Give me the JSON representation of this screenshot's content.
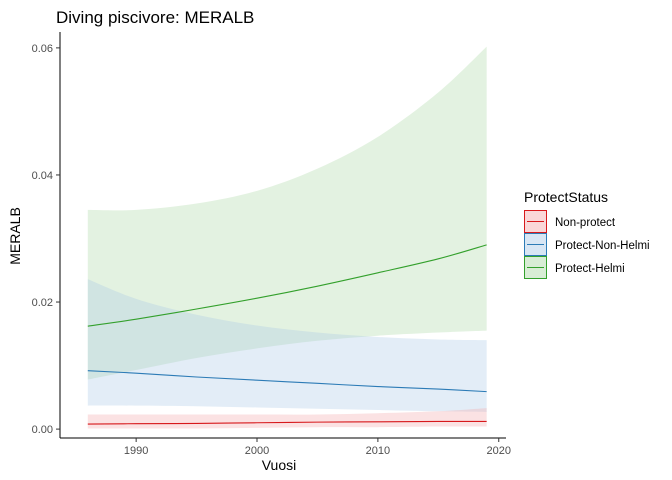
{
  "chart_data": {
    "type": "line",
    "title": "Diving piscivore: MERALB",
    "xlabel": "Vuosi",
    "ylabel": "MERALB",
    "xlim": [
      1983.7,
      2020.6
    ],
    "ylim": [
      -0.0014,
      0.0625
    ],
    "x_ticks": [
      1990,
      2000,
      2010,
      2020
    ],
    "y_ticks": [
      0.0,
      0.02,
      0.04,
      0.06
    ],
    "x_tick_labels": [
      "1990",
      "2000",
      "2010",
      "2020"
    ],
    "y_tick_labels": [
      "0.00",
      "0.02",
      "0.04",
      "0.06"
    ],
    "grid": false,
    "legend": {
      "title": "ProtectStatus",
      "position": "right"
    },
    "x": [
      1986,
      1990,
      1995,
      2000,
      2005,
      2010,
      2015,
      2019
    ],
    "series": [
      {
        "name": "Non-protect",
        "line_color": "#d7191c",
        "fill_color": "#f4a6a8",
        "values": [
          0.0008,
          0.00085,
          0.0009,
          0.001,
          0.0011,
          0.00115,
          0.0012,
          0.0012
        ],
        "lower": [
          0.0001,
          0.0001,
          0.0001,
          0.0002,
          0.0003,
          0.0003,
          0.0004,
          0.0004
        ],
        "upper": [
          0.0023,
          0.0023,
          0.0023,
          0.0023,
          0.0023,
          0.0025,
          0.0028,
          0.0033
        ]
      },
      {
        "name": "Protect-Non-Helmi",
        "line_color": "#2c7bb6",
        "fill_color": "#a9c8e6",
        "values": [
          0.0092,
          0.0088,
          0.0082,
          0.0077,
          0.0072,
          0.0067,
          0.0063,
          0.0059
        ],
        "lower": [
          0.0037,
          0.0037,
          0.0036,
          0.0034,
          0.0032,
          0.003,
          0.0028,
          0.0027
        ],
        "upper": [
          0.0236,
          0.0205,
          0.018,
          0.0163,
          0.0152,
          0.0145,
          0.0141,
          0.014
        ]
      },
      {
        "name": "Protect-Helmi",
        "line_color": "#33a02c",
        "fill_color": "#a8d8a1",
        "values": [
          0.0162,
          0.0173,
          0.0189,
          0.0206,
          0.0225,
          0.0246,
          0.0268,
          0.029
        ],
        "lower": [
          0.0078,
          0.0093,
          0.0112,
          0.0127,
          0.0139,
          0.0147,
          0.0152,
          0.0155
        ],
        "upper": [
          0.0345,
          0.0345,
          0.0355,
          0.0375,
          0.041,
          0.046,
          0.053,
          0.0602
        ]
      }
    ]
  }
}
